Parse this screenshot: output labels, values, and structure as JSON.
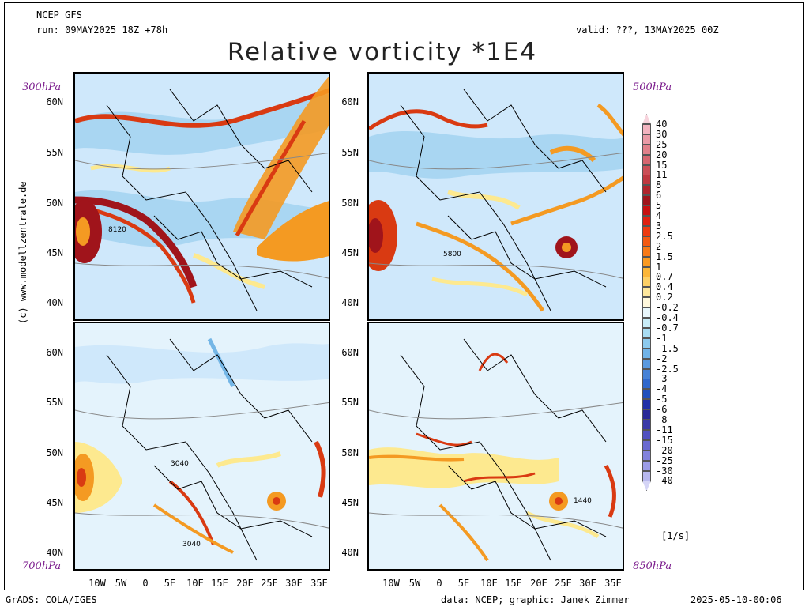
{
  "header": {
    "model": "NCEP GFS",
    "run": "run: 09MAY2025 18Z +78h",
    "valid": "valid: ???, 13MAY2025 00Z",
    "title": "Relative vorticity *1E4"
  },
  "credit": "(c) www.modellzentrale.de",
  "footer": {
    "left": "GrADS: COLA/IGES",
    "center": "data: NCEP; graphic: Janek Zimmer",
    "right": "2025-05-10-00:06"
  },
  "panels": [
    {
      "level": "300hPa",
      "contour_label": "8120"
    },
    {
      "level": "500hPa",
      "contour_label": "5800"
    },
    {
      "level": "700hPa",
      "contour_labels": [
        "3040",
        "3040"
      ]
    },
    {
      "level": "850hPa",
      "contour_label": "1440"
    }
  ],
  "lat_labels": [
    "60N",
    "55N",
    "50N",
    "45N",
    "40N"
  ],
  "lon_labels": [
    "10W",
    "5W",
    "0",
    "5E",
    "10E",
    "15E",
    "20E",
    "25E",
    "30E",
    "35E"
  ],
  "colorbar": {
    "unit": "[1/s]",
    "labels": [
      "40",
      "30",
      "25",
      "20",
      "15",
      "11",
      "8",
      "6",
      "5",
      "4",
      "3",
      "2.5",
      "2",
      "1.5",
      "1",
      "0.7",
      "0.4",
      "0.2",
      "-0.2",
      "-0.4",
      "-0.7",
      "-1",
      "-1.5",
      "-2",
      "-2.5",
      "-3",
      "-4",
      "-5",
      "-6",
      "-8",
      "-11",
      "-15",
      "-20",
      "-25",
      "-30",
      "-40"
    ],
    "colors": [
      "#f7d3dc",
      "#f2b3bf",
      "#e99aa6",
      "#e0808a",
      "#d66670",
      "#cb4f57",
      "#bf3840",
      "#b0242c",
      "#a0141b",
      "#c81010",
      "#e02010",
      "#ee3a10",
      "#f45a12",
      "#f77a18",
      "#fa9a22",
      "#fcb638",
      "#fdd066",
      "#fee79c",
      "#fff8dc",
      "#e8f6fb",
      "#c8ecf7",
      "#a8dcf2",
      "#8ccaee",
      "#70b3e8",
      "#5a9ae0",
      "#4682d6",
      "#3068cc",
      "#2050bd",
      "#2030a8",
      "#2a2a98",
      "#3a3aa8",
      "#5252c0",
      "#6a6ad0",
      "#8282dc",
      "#9c9ce6",
      "#b8b8ee",
      "#d4d4f6"
    ]
  },
  "map_colors": {
    "background_blue": "#cfe8fb",
    "light_blue": "#a9d6f2",
    "mid_blue": "#74b6e6",
    "yellow": "#fde98f",
    "orange": "#f49a22",
    "red": "#d93a12",
    "dark_red": "#a0141b"
  }
}
